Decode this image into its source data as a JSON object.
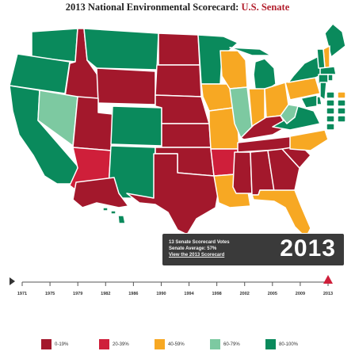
{
  "title": {
    "main": "2013 National Environmental Scorecard:",
    "accent": "U.S. Senate"
  },
  "colors": {
    "bucket_0_19": "#a3182c",
    "bucket_20_39": "#cf1f3a",
    "bucket_40_59": "#f7a823",
    "bucket_60_79": "#7dc9a1",
    "bucket_80_100": "#0a8a5c",
    "banner_bg": "#3a3a3a",
    "marker": "#cf1f3a"
  },
  "states": {
    "WA": "80-100",
    "OR": "80-100",
    "CA": "80-100",
    "ID": "0-19",
    "NV": "60-79",
    "MT": "80-100",
    "WY": "0-19",
    "UT": "0-19",
    "AZ": "20-39",
    "CO": "80-100",
    "NM": "80-100",
    "ND": "0-19",
    "SD": "0-19",
    "NE": "0-19",
    "KS": "0-19",
    "OK": "0-19",
    "TX": "0-19",
    "MN": "80-100",
    "IA": "40-59",
    "MO": "40-59",
    "AR": "20-39",
    "LA": "40-59",
    "WI": "40-59",
    "IL": "60-79",
    "MI": "80-100",
    "IN": "40-59",
    "OH": "40-59",
    "KY": "0-19",
    "TN": "0-19",
    "MS": "0-19",
    "AL": "0-19",
    "GA": "0-19",
    "FL": "40-59",
    "SC": "0-19",
    "NC": "40-59",
    "VA": "80-100",
    "WV": "60-79",
    "PA": "40-59",
    "NY": "80-100",
    "ME": "80-100",
    "NH": "40-59",
    "VT": "80-100",
    "MA": "80-100",
    "RI": "80-100",
    "CT": "80-100",
    "NJ": "80-100",
    "DE": "80-100",
    "MD": "80-100",
    "AK": "0-19",
    "HI": "80-100"
  },
  "small_states": [
    {
      "abbr": "VT",
      "bucket": "80-100"
    },
    {
      "abbr": "NH",
      "bucket": "40-59"
    },
    {
      "abbr": "MA",
      "bucket": "80-100"
    },
    {
      "abbr": "RI",
      "bucket": "80-100"
    },
    {
      "abbr": "CT",
      "bucket": "80-100"
    },
    {
      "abbr": "NJ",
      "bucket": "80-100"
    },
    {
      "abbr": "DE",
      "bucket": "80-100"
    },
    {
      "abbr": "MD",
      "bucket": "80-100"
    },
    {
      "abbr": "DC",
      "bucket": "80-100"
    }
  ],
  "banner": {
    "line1": "13 Senate Scorecard Votes",
    "line2": "Senate Average: 57%",
    "link": "View the 2013 Scorecard",
    "year": "2013"
  },
  "timeline": {
    "years": [
      "1971",
      "1975",
      "1979",
      "1982",
      "1986",
      "1990",
      "1994",
      "1998",
      "2002",
      "2005",
      "2009",
      "2013"
    ],
    "current": "2013"
  },
  "legend": [
    {
      "label": "0-19%",
      "bucket": "0-19"
    },
    {
      "label": "20-39%",
      "bucket": "20-39"
    },
    {
      "label": "40-59%",
      "bucket": "40-59"
    },
    {
      "label": "60-79%",
      "bucket": "60-79"
    },
    {
      "label": "80-100%",
      "bucket": "80-100"
    }
  ]
}
